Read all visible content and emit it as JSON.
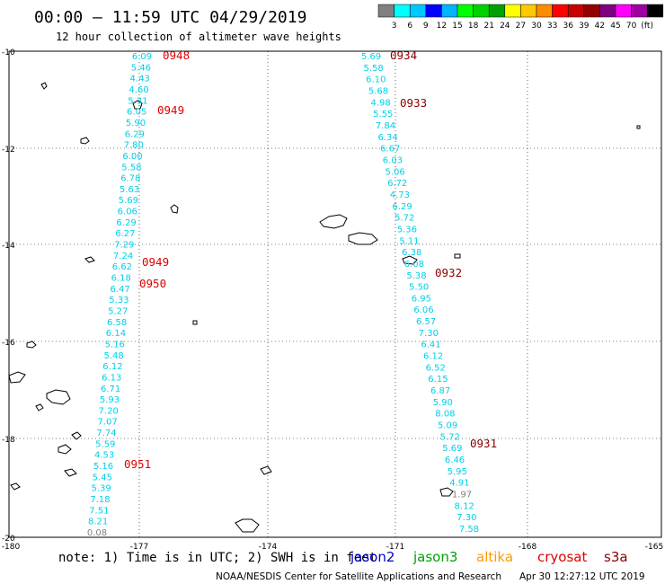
{
  "header": {
    "title": "00:00 – 11:59 UTC 04/29/2019",
    "subtitle": "12 hour collection of altimeter wave heights"
  },
  "colorbar": {
    "colors": [
      "#808080",
      "#00ffff",
      "#00c8ff",
      "#0000ff",
      "#00b4ff",
      "#00ff00",
      "#00d200",
      "#00a000",
      "#ffff00",
      "#ffc800",
      "#ff8c00",
      "#ff0000",
      "#c80000",
      "#960000",
      "#800080",
      "#ff00ff",
      "#a000a0",
      "#000000"
    ],
    "labels": [
      "3",
      "6",
      "9",
      "12",
      "15",
      "18",
      "21",
      "24",
      "27",
      "30",
      "33",
      "36",
      "39",
      "42",
      "45",
      "70",
      "(ft)"
    ]
  },
  "axes": {
    "lat_labels": [
      "-10",
      "-12",
      "-14",
      "-16",
      "-18",
      "-20"
    ],
    "lon_labels": [
      "-180",
      "-177",
      "-174",
      "-171",
      "-168",
      "-165"
    ]
  },
  "tracks": {
    "west": {
      "color": "#00d0e8",
      "values": [
        "6.09",
        "5.46",
        "4.43",
        "4.60",
        "5.31",
        "6.05",
        "5.90",
        "6.29",
        "7.80",
        "6.00",
        "5.58",
        "6.78",
        "5.63",
        "5.69",
        "6.06",
        "6.29",
        "6.27",
        "7.29",
        "7.24",
        "6.62",
        "6.18",
        "6.47",
        "5.33",
        "5.27",
        "6.58",
        "6.14",
        "5.16",
        "5.48",
        "6.12",
        "6.13",
        "6.71",
        "5.93",
        "7.20",
        "7.07",
        "7.74",
        "5.59",
        "4.53",
        "5.16",
        "5.45",
        "5.39",
        "7.18",
        "7.51",
        "8.21",
        "0.08"
      ]
    },
    "east": {
      "color": "#00d0e8",
      "values": [
        "5.69",
        "5.58",
        "6.10",
        "5.68",
        "4.98",
        "5.55",
        "7.84",
        "6.34",
        "6.67",
        "6.03",
        "5.06",
        "6.72",
        "4.73",
        "6.29",
        "5.72",
        "5.36",
        "5.11",
        "6.38",
        "6.08",
        "5.38",
        "5.50",
        "6.95",
        "6.06",
        "6.57",
        "7.30",
        "6.41",
        "6.12",
        "6.52",
        "6.15",
        "6.87",
        "5.90",
        "8.08",
        "5.09",
        "5.72",
        "5.69",
        "6.46",
        "5.95",
        "4.91",
        "1.97",
        "8.12",
        "7.30",
        "7.58"
      ]
    }
  },
  "time_labels": {
    "west": [
      {
        "text": "0948",
        "color": "#e00000"
      },
      {
        "text": "0949",
        "color": "#e00000"
      },
      {
        "text": "0949",
        "color": "#e00000"
      },
      {
        "text": "0950",
        "color": "#e00000"
      },
      {
        "text": "0951",
        "color": "#e00000"
      }
    ],
    "east": [
      {
        "text": "0934",
        "color": "#8b0000"
      },
      {
        "text": "0933",
        "color": "#8b0000"
      },
      {
        "text": "0932",
        "color": "#8b0000"
      },
      {
        "text": "0931",
        "color": "#8b0000"
      }
    ]
  },
  "footer": {
    "note": "note: 1) Time is in UTC; 2) SWH is in feet",
    "legend": [
      {
        "name": "jason2",
        "color": "#0000cc"
      },
      {
        "name": "jason3",
        "color": "#00a000"
      },
      {
        "name": "altika",
        "color": "#ff9900"
      },
      {
        "name": "cryosat",
        "color": "#e00000"
      },
      {
        "name": "s3a",
        "color": "#8b0000"
      }
    ],
    "credit": "NOAA/NESDIS Center for Satellite Applications and Research",
    "timestamp": "Apr 30 12:27:12 UTC 2019"
  }
}
